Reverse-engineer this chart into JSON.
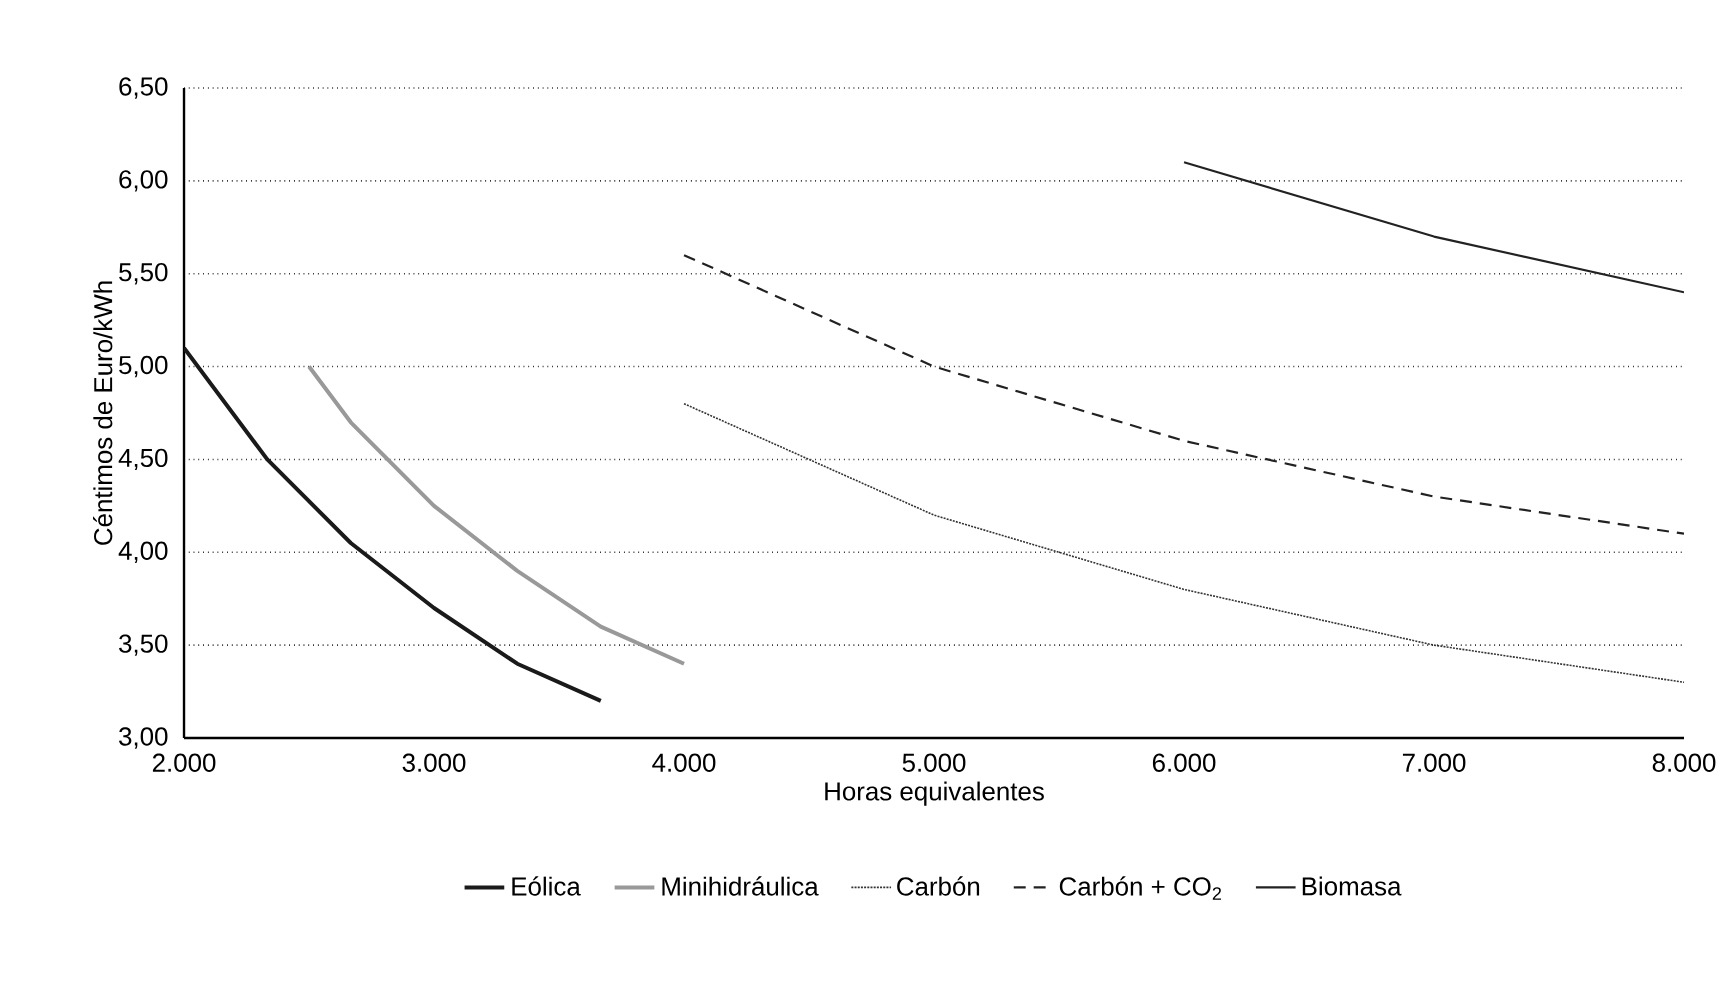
{
  "chart_data": {
    "type": "line",
    "xlabel": "Horas equivalentes",
    "ylabel": "Céntimos de Euro/kWh",
    "xlim": [
      2000,
      8000
    ],
    "ylim": [
      3.0,
      6.5
    ],
    "xticks": [
      {
        "value": 2000,
        "label": "2.000"
      },
      {
        "value": 3000,
        "label": "3.000"
      },
      {
        "value": 4000,
        "label": "4.000"
      },
      {
        "value": 5000,
        "label": "5.000"
      },
      {
        "value": 6000,
        "label": "6.000"
      },
      {
        "value": 7000,
        "label": "7.000"
      },
      {
        "value": 8000,
        "label": "8.000"
      }
    ],
    "yticks": [
      {
        "value": 3.0,
        "label": "3,00"
      },
      {
        "value": 3.5,
        "label": "3,50"
      },
      {
        "value": 4.0,
        "label": "4,00"
      },
      {
        "value": 4.5,
        "label": "4,50"
      },
      {
        "value": 5.0,
        "label": "5,00"
      },
      {
        "value": 5.5,
        "label": "5,50"
      },
      {
        "value": 6.0,
        "label": "6,00"
      },
      {
        "value": 6.5,
        "label": "6,50"
      }
    ],
    "grid": "y",
    "legend": "bottom",
    "marker": "none",
    "series": [
      {
        "name": "Eólica",
        "color": "#1a1a1a",
        "line_style": "solid",
        "x": [
          2000,
          2333,
          2667,
          3000,
          3333,
          3667
        ],
        "values": [
          5.1,
          4.5,
          4.05,
          3.7,
          3.4,
          3.2
        ]
      },
      {
        "name": "Minihidráulica",
        "color": "#999999",
        "line_style": "solid",
        "x": [
          2500,
          2667,
          3000,
          3333,
          3667,
          4000
        ],
        "values": [
          5.0,
          4.7,
          4.25,
          3.9,
          3.6,
          3.4
        ]
      },
      {
        "name": "Carbón",
        "color": "#333333",
        "line_style": "dotted",
        "x": [
          4000,
          5000,
          6000,
          7000,
          8000
        ],
        "values": [
          4.8,
          4.2,
          3.8,
          3.5,
          3.3
        ]
      },
      {
        "name": "Carbón + CO$_{2}$",
        "color": "#222222",
        "line_style": "dashed",
        "x": [
          4000,
          5000,
          6000,
          7000,
          8000
        ],
        "values": [
          5.6,
          5.0,
          4.6,
          4.3,
          4.1
        ]
      },
      {
        "name": "Biomasa",
        "color": "#222222",
        "line_style": "solid",
        "x": [
          6000,
          7000,
          8000
        ],
        "values": [
          6.1,
          5.7,
          5.4
        ]
      }
    ]
  }
}
